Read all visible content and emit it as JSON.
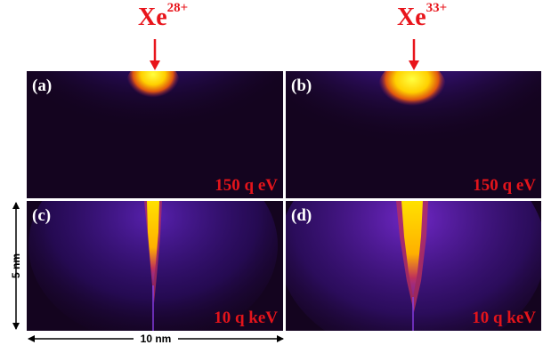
{
  "ions": {
    "left": {
      "symbol": "Xe",
      "charge": "28+"
    },
    "right": {
      "symbol": "Xe",
      "charge": "33+"
    }
  },
  "panels": [
    {
      "tag": "(a)",
      "energy": "150 q eV"
    },
    {
      "tag": "(b)",
      "energy": "150 q eV"
    },
    {
      "tag": "(c)",
      "energy": "10 q keV"
    },
    {
      "tag": "(d)",
      "energy": "10 q keV"
    }
  ],
  "scale": {
    "vertical": "5 nm",
    "horizontal": "10 nm"
  },
  "colors": {
    "label_red": "#e8141b",
    "background": "#12031c",
    "hot": "#ffe100",
    "glow": "#7a2bd9"
  }
}
